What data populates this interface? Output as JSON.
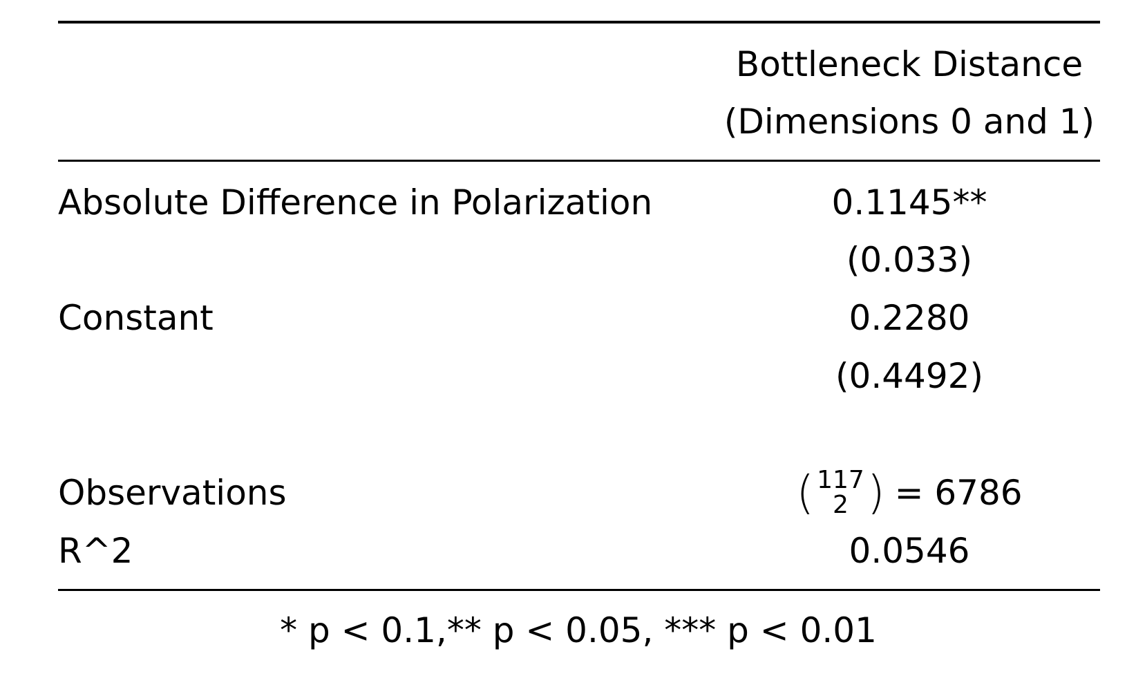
{
  "table": {
    "header": [
      "Bottleneck Distance",
      "(Dimensions 0 and 1)"
    ],
    "rows": [
      {
        "label": "Absolute Difference in Polarization",
        "value": "0.1145**",
        "se": "(0.033)"
      },
      {
        "label": "Constant",
        "value": "0.2280",
        "se": "(0.4492)"
      }
    ],
    "stats": [
      {
        "label": "Observations",
        "binomial": {
          "top": "117",
          "bottom": "2",
          "result": "= 6786"
        }
      },
      {
        "label": "R^2",
        "value": "0.0546"
      }
    ],
    "footnote": "* p < 0.1,** p < 0.05, *** p < 0.01"
  }
}
